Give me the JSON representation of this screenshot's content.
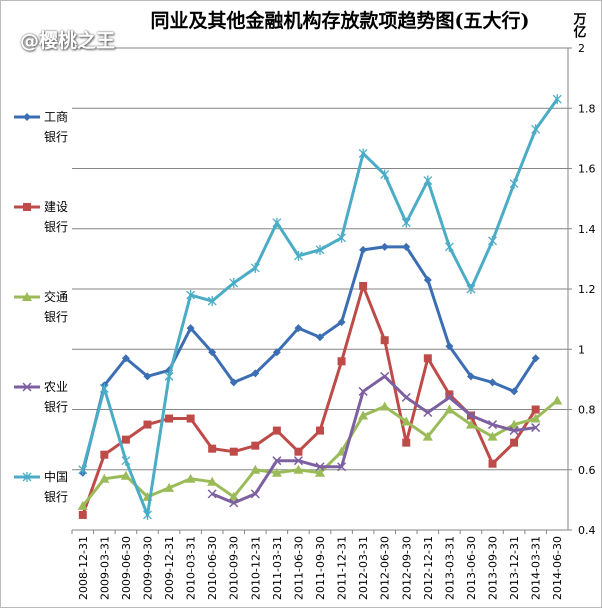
{
  "watermark": "@樱桃之王",
  "chart_data": {
    "type": "line",
    "title": "同业及其他金融机构存放款项趋势图(五大行)",
    "y_label": "万亿",
    "categories": [
      "2008-12-31",
      "2009-03-31",
      "2009-06-30",
      "2009-09-30",
      "2009-12-31",
      "2010-03-31",
      "2010-06-30",
      "2010-09-30",
      "2010-12-31",
      "2011-03-31",
      "2011-06-30",
      "2011-09-30",
      "2011-12-31",
      "2012-03-31",
      "2012-06-30",
      "2012-09-30",
      "2012-12-31",
      "2013-03-31",
      "2013-06-30",
      "2013-09-30",
      "2013-12-31",
      "2014-03-31",
      "2014-06-30"
    ],
    "ylim": [
      0.4,
      2
    ],
    "yticks": [
      0.4,
      0.6,
      0.8,
      1,
      1.2,
      1.4,
      1.6,
      1.8,
      2
    ],
    "grid": true,
    "legend": "left",
    "series": [
      {
        "name": "工商银行",
        "color": "#3c6eb4",
        "marker": "diamond",
        "values": [
          0.59,
          0.88,
          0.97,
          0.91,
          0.93,
          1.07,
          0.99,
          0.89,
          0.92,
          0.99,
          1.07,
          1.04,
          1.09,
          1.33,
          1.34,
          1.34,
          1.23,
          1.01,
          0.91,
          0.89,
          0.86,
          0.97,
          null
        ]
      },
      {
        "name": "建设银行",
        "color": "#be4b48",
        "marker": "square",
        "values": [
          0.45,
          0.65,
          0.7,
          0.75,
          0.77,
          0.77,
          0.67,
          0.66,
          0.68,
          0.73,
          0.66,
          0.73,
          0.96,
          1.21,
          1.03,
          0.69,
          0.97,
          0.85,
          0.78,
          0.62,
          0.69,
          0.8,
          null
        ]
      },
      {
        "name": "交通银行",
        "color": "#9bbb59",
        "marker": "triangle",
        "values": [
          0.48,
          0.57,
          0.58,
          0.51,
          0.54,
          0.57,
          0.56,
          0.51,
          0.6,
          0.59,
          0.6,
          0.59,
          0.66,
          0.78,
          0.81,
          0.76,
          0.71,
          0.8,
          0.75,
          0.71,
          0.75,
          0.77,
          0.83
        ]
      },
      {
        "name": "农业银行",
        "color": "#7d60a0",
        "marker": "x",
        "values": [
          null,
          null,
          null,
          null,
          null,
          null,
          0.52,
          0.49,
          0.52,
          0.63,
          0.63,
          0.61,
          0.61,
          0.86,
          0.91,
          0.84,
          0.79,
          0.84,
          0.78,
          0.75,
          0.73,
          0.74,
          null
        ]
      },
      {
        "name": "中国银行",
        "color": "#4bacc6",
        "marker": "star",
        "values": [
          0.6,
          0.87,
          0.63,
          0.45,
          0.91,
          1.18,
          1.16,
          1.22,
          1.27,
          1.42,
          1.31,
          1.33,
          1.37,
          1.65,
          1.58,
          1.42,
          1.56,
          1.34,
          1.2,
          1.36,
          1.55,
          1.73,
          1.83
        ]
      }
    ]
  }
}
